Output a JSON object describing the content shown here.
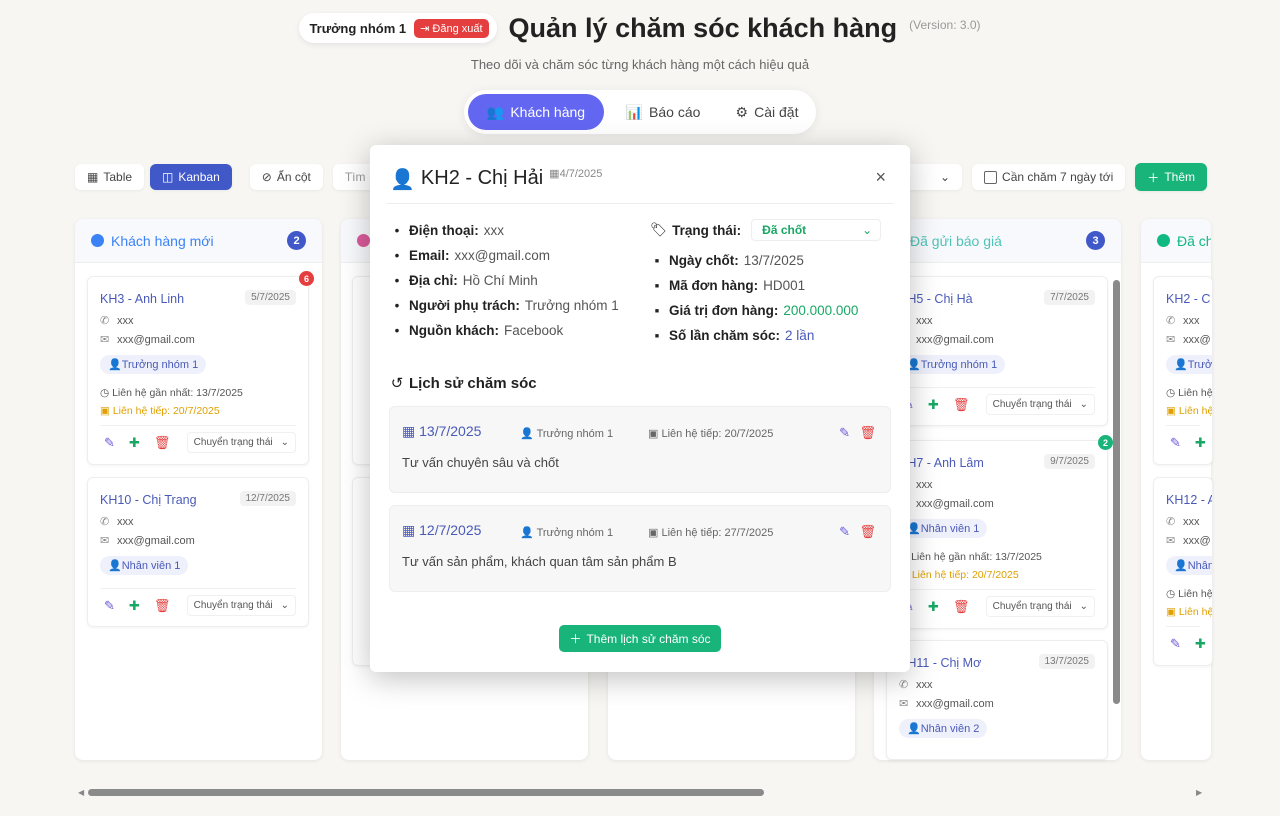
{
  "header": {
    "user": "Trưởng nhóm 1",
    "logout": "Đăng xuất",
    "title": "Quản lý chăm sóc khách hàng",
    "version": "(Version: 3.0)",
    "subtitle": "Theo dõi và chăm sóc từng khách hàng một cách hiệu quả"
  },
  "nav": [
    {
      "label": "Khách hàng",
      "icon": "users-icon",
      "active": true
    },
    {
      "label": "Báo cáo",
      "icon": "chart-bar-icon"
    },
    {
      "label": "Cài đặt",
      "icon": "gear-icon"
    }
  ],
  "toolbar": {
    "table": "Table",
    "kanban": "Kanban",
    "hide_cols": "Ẩn cột",
    "search_placeholder": "Tìm",
    "due_filter": "Cần chăm 7 ngày tới",
    "add": "Thêm"
  },
  "columns": [
    {
      "title": "Khách hàng mới",
      "count": "2",
      "color": "#3b82f6",
      "cards": [
        {
          "name": "KH3 - Anh Linh",
          "date": "5/7/2025",
          "phone": "xxx",
          "email": "xxx@gmail.com",
          "assignee": "Trưởng nhóm 1",
          "last": "Liên hệ gần nhất: 13/7/2025",
          "next": "Liên hệ tiếp: 20/7/2025",
          "badge": "6",
          "move": "Chuyển trạng thái"
        },
        {
          "name": "KH10 - Chị Trang",
          "date": "12/7/2025",
          "phone": "xxx",
          "email": "xxx@gmail.com",
          "assignee": "Nhân viên 1",
          "move": "Chuyển trạng thái"
        }
      ]
    },
    {
      "title": "",
      "count": "",
      "color": "#db5a9a"
    },
    {
      "title": "",
      "count": "",
      "color": "#f59e0b"
    },
    {
      "title": "Đã gửi báo giá",
      "count": "3",
      "color": "#4fc3b8",
      "cards": [
        {
          "name": "KH5 - Chị Hà",
          "date": "7/7/2025",
          "phone": "xxx",
          "email": "xxx@gmail.com",
          "assignee": "Trưởng nhóm 1",
          "move": "Chuyển trạng thái"
        },
        {
          "name": "KH7 - Anh Lâm",
          "date": "9/7/2025",
          "phone": "xxx",
          "email": "xxx@gmail.com",
          "assignee": "Nhân viên 1",
          "last": "Liên hệ gần nhất: 13/7/2025",
          "next": "Liên hệ tiếp: 20/7/2025",
          "badge": "2",
          "move": "Chuyển trạng thái"
        },
        {
          "name": "KH11 - Chị Mơ",
          "date": "13/7/2025",
          "phone": "xxx",
          "email": "xxx@gmail.com",
          "assignee": "Nhân viên 2"
        }
      ]
    },
    {
      "title": "Đã chốt",
      "count": "",
      "color": "#10b981",
      "cards": [
        {
          "name": "KH2 - C",
          "phone": "xxx",
          "email": "xxx@",
          "assignee": "Trưở",
          "last": "Liên hệ",
          "next": "Liên hệ"
        },
        {
          "name": "KH12 - A",
          "phone": "xxx",
          "email": "xxx@",
          "assignee": "Nhân",
          "last": "Liên hệ",
          "next": "Liên hệ"
        }
      ]
    }
  ],
  "modal": {
    "title": "KH2 - Chị Hải",
    "created": "4/7/2025",
    "left": [
      {
        "label": "Điện thoại:",
        "value": "xxx",
        "icon": "phone-icon"
      },
      {
        "label": "Email:",
        "value": "xxx@gmail.com",
        "icon": "envelope-icon"
      },
      {
        "label": "Địa chỉ:",
        "value": "Hồ Chí Minh",
        "icon": "map-pin-icon"
      },
      {
        "label": "Người phụ trách:",
        "value": "Trưởng nhóm 1",
        "icon": "user-icon"
      },
      {
        "label": "Nguồn khách:",
        "value": "Facebook",
        "icon": "share-icon"
      }
    ],
    "status_label": "Trạng thái:",
    "status_value": "Đã chốt",
    "right": [
      {
        "label": "Ngày chốt:",
        "value": "13/7/2025",
        "icon": "calendar-check-icon"
      },
      {
        "label": "Mã đơn hàng:",
        "value": "HD001",
        "icon": "receipt-icon"
      },
      {
        "label": "Giá trị đơn hàng:",
        "value": "200.000.000",
        "icon": "money-icon",
        "color": "#18a864"
      },
      {
        "label": "Số lần chăm sóc:",
        "value": "2 lần",
        "icon": "chart-line-icon",
        "color": "#4a5ab8"
      }
    ],
    "history_title": "Lịch sử chăm sóc",
    "history": [
      {
        "date": "13/7/2025",
        "user": "Trưởng nhóm 1",
        "next": "Liên hệ tiếp: 20/7/2025",
        "note": "Tư vấn chuyên sâu và chốt"
      },
      {
        "date": "12/7/2025",
        "user": "Trưởng nhóm 1",
        "next": "Liên hệ tiếp: 27/7/2025",
        "note": "Tư vấn sản phẩm, khách quan tâm sản phẩm B"
      }
    ],
    "add_history": "Thêm lịch sử chăm sóc"
  },
  "colors": {
    "primary": "#6366f1",
    "kanban": "#4058c8",
    "success": "#18b47a",
    "danger": "#e53e3e",
    "warning": "#e0a000"
  }
}
